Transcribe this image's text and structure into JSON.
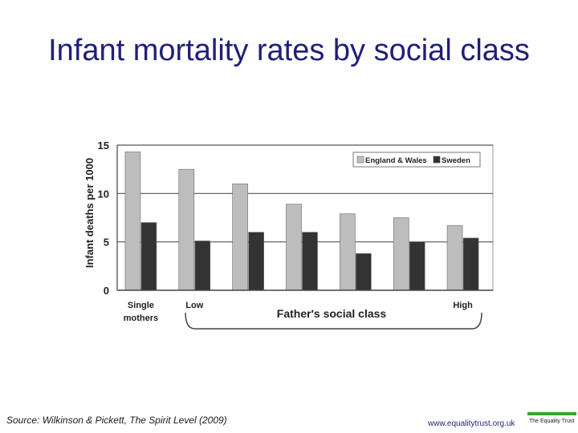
{
  "slide": {
    "title": "Infant mortality rates by social class",
    "source": "Source: Wilkinson & Pickett, The Spirit Level (2009)",
    "website": "www.equalitytrust.org.uk",
    "logo_text": "The Equality Trust"
  },
  "colors": {
    "title": "#1f1f7a",
    "england_wales": "#bdbdbd",
    "sweden": "#333333",
    "logo_accent": "#3aa335"
  },
  "chart_data": {
    "type": "bar",
    "categories": [
      "Single mothers",
      "",
      "",
      "",
      "",
      "",
      ""
    ],
    "category_labels": [
      {
        "text": "Single",
        "text2": "mothers"
      },
      {
        "text": "Low"
      },
      {
        "text": ""
      },
      {
        "text": ""
      },
      {
        "text": ""
      },
      {
        "text": ""
      },
      {
        "text": "High"
      }
    ],
    "series": [
      {
        "name": "England & Wales",
        "values": [
          14.3,
          12.5,
          11.0,
          8.9,
          7.9,
          7.5,
          6.7
        ]
      },
      {
        "name": "Sweden",
        "values": [
          7.0,
          5.1,
          6.0,
          6.0,
          3.8,
          5.0,
          5.4
        ]
      }
    ],
    "xlabel": "Father's social class",
    "ylabel": "Infant deaths per 1000",
    "ylim": [
      0,
      15
    ],
    "yticks": [
      0,
      5,
      10,
      15
    ],
    "grid": true,
    "legend_position": "top-right"
  }
}
